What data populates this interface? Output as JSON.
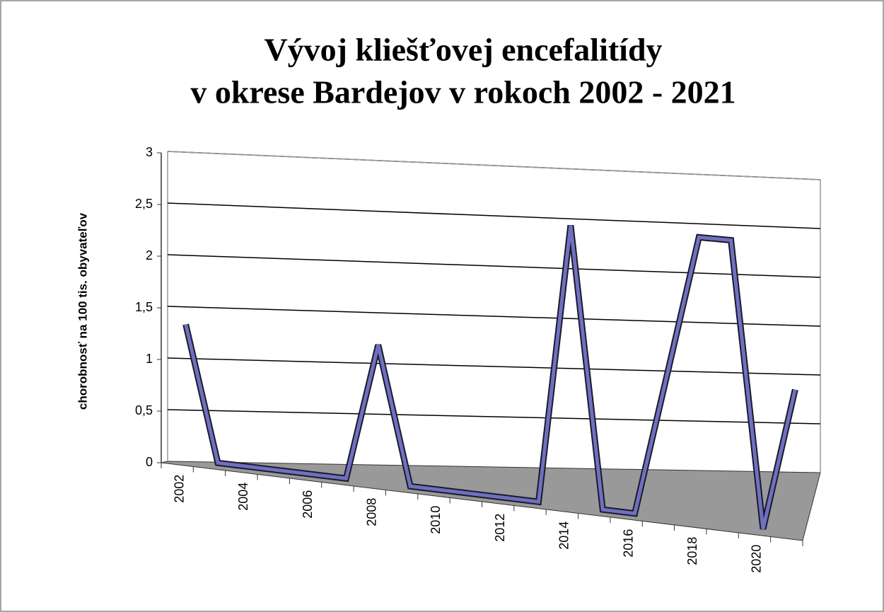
{
  "chart_data": {
    "type": "line3d",
    "title": [
      "Vývoj kliešťovej encefalitídy",
      "v okrese Bardejov v rokoch 2002 - 2021"
    ],
    "y_label": "chorobnosť na 100 tis. obyvateľov",
    "categories": [
      "2002",
      null,
      "2004",
      null,
      "2006",
      null,
      "2008",
      null,
      "2010",
      null,
      "2012",
      null,
      "2014",
      null,
      "2016",
      null,
      "2018",
      null,
      "2020",
      null
    ],
    "series": [
      {
        "name": "chorobnosť",
        "color": "#7070c0",
        "values": [
          1.3,
          0,
          0,
          0,
          0,
          0,
          1.3,
          0,
          0,
          0,
          0,
          0,
          2.6,
          0,
          0,
          1.3,
          2.6,
          2.6,
          0,
          1.3
        ]
      }
    ],
    "ylim": [
      0,
      3
    ],
    "yticks": [
      0,
      {
        "value": 0.5,
        "label": "0,5"
      },
      1,
      {
        "value": 1.5,
        "label": "1,5"
      },
      2,
      {
        "value": 2.5,
        "label": "2,5"
      },
      3
    ],
    "grid": true
  }
}
